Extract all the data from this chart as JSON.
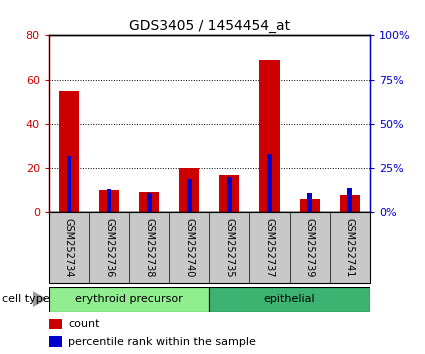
{
  "title": "GDS3405 / 1454454_at",
  "samples": [
    "GSM252734",
    "GSM252736",
    "GSM252738",
    "GSM252740",
    "GSM252735",
    "GSM252737",
    "GSM252739",
    "GSM252741"
  ],
  "count_values": [
    55,
    10,
    9,
    20,
    17,
    69,
    6,
    8
  ],
  "percentile_values": [
    32,
    13,
    11,
    19,
    20,
    33,
    11,
    14
  ],
  "groups": [
    {
      "label": "erythroid precursor",
      "start": 0,
      "end": 4,
      "color": "#90EE90"
    },
    {
      "label": "epithelial",
      "start": 4,
      "end": 8,
      "color": "#3CB371"
    }
  ],
  "left_yticks": [
    0,
    20,
    40,
    60,
    80
  ],
  "right_yticks": [
    0,
    25,
    50,
    75,
    100
  ],
  "right_yticklabels": [
    "0%",
    "25%",
    "50%",
    "75%",
    "100%"
  ],
  "ylim_left": [
    0,
    80
  ],
  "ylim_right": [
    0,
    100
  ],
  "bar_color_red": "#CC0000",
  "bar_color_blue": "#0000CC",
  "red_bar_width": 0.5,
  "blue_bar_width": 0.12,
  "legend_count_label": "count",
  "legend_pct_label": "percentile rank within the sample",
  "cell_type_label": "cell type",
  "label_area_color": "#C8C8C8",
  "erythroid_color": "#90EE90",
  "epithelial_color": "#3CB371"
}
